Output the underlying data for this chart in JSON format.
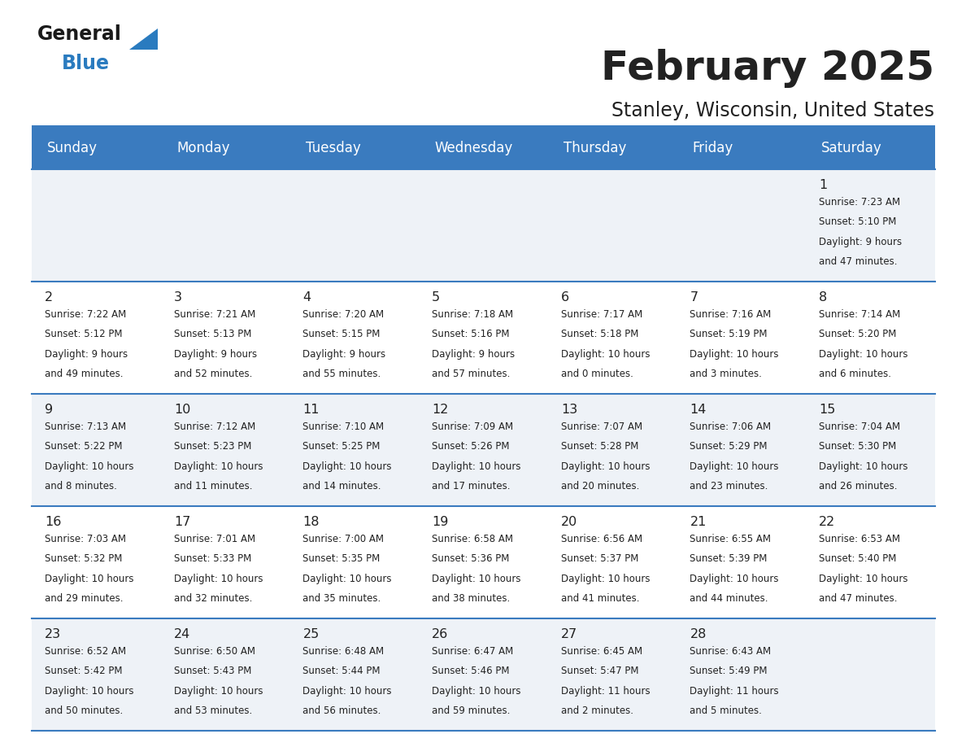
{
  "title": "February 2025",
  "subtitle": "Stanley, Wisconsin, United States",
  "days_of_week": [
    "Sunday",
    "Monday",
    "Tuesday",
    "Wednesday",
    "Thursday",
    "Friday",
    "Saturday"
  ],
  "header_bg": "#3a7bbf",
  "header_text": "#ffffff",
  "cell_bg_even": "#eef2f7",
  "cell_bg_odd": "#ffffff",
  "divider_color": "#3a7bbf",
  "text_color": "#222222",
  "logo_general_color": "#1a1a1a",
  "logo_blue_color": "#2a7bbf",
  "calendar_data": [
    {
      "day": 1,
      "col": 6,
      "row": 0,
      "sunrise": "7:23 AM",
      "sunset": "5:10 PM",
      "daylight": "9 hours and 47 minutes"
    },
    {
      "day": 2,
      "col": 0,
      "row": 1,
      "sunrise": "7:22 AM",
      "sunset": "5:12 PM",
      "daylight": "9 hours and 49 minutes"
    },
    {
      "day": 3,
      "col": 1,
      "row": 1,
      "sunrise": "7:21 AM",
      "sunset": "5:13 PM",
      "daylight": "9 hours and 52 minutes"
    },
    {
      "day": 4,
      "col": 2,
      "row": 1,
      "sunrise": "7:20 AM",
      "sunset": "5:15 PM",
      "daylight": "9 hours and 55 minutes"
    },
    {
      "day": 5,
      "col": 3,
      "row": 1,
      "sunrise": "7:18 AM",
      "sunset": "5:16 PM",
      "daylight": "9 hours and 57 minutes"
    },
    {
      "day": 6,
      "col": 4,
      "row": 1,
      "sunrise": "7:17 AM",
      "sunset": "5:18 PM",
      "daylight": "10 hours and 0 minutes"
    },
    {
      "day": 7,
      "col": 5,
      "row": 1,
      "sunrise": "7:16 AM",
      "sunset": "5:19 PM",
      "daylight": "10 hours and 3 minutes"
    },
    {
      "day": 8,
      "col": 6,
      "row": 1,
      "sunrise": "7:14 AM",
      "sunset": "5:20 PM",
      "daylight": "10 hours and 6 minutes"
    },
    {
      "day": 9,
      "col": 0,
      "row": 2,
      "sunrise": "7:13 AM",
      "sunset": "5:22 PM",
      "daylight": "10 hours and 8 minutes"
    },
    {
      "day": 10,
      "col": 1,
      "row": 2,
      "sunrise": "7:12 AM",
      "sunset": "5:23 PM",
      "daylight": "10 hours and 11 minutes"
    },
    {
      "day": 11,
      "col": 2,
      "row": 2,
      "sunrise": "7:10 AM",
      "sunset": "5:25 PM",
      "daylight": "10 hours and 14 minutes"
    },
    {
      "day": 12,
      "col": 3,
      "row": 2,
      "sunrise": "7:09 AM",
      "sunset": "5:26 PM",
      "daylight": "10 hours and 17 minutes"
    },
    {
      "day": 13,
      "col": 4,
      "row": 2,
      "sunrise": "7:07 AM",
      "sunset": "5:28 PM",
      "daylight": "10 hours and 20 minutes"
    },
    {
      "day": 14,
      "col": 5,
      "row": 2,
      "sunrise": "7:06 AM",
      "sunset": "5:29 PM",
      "daylight": "10 hours and 23 minutes"
    },
    {
      "day": 15,
      "col": 6,
      "row": 2,
      "sunrise": "7:04 AM",
      "sunset": "5:30 PM",
      "daylight": "10 hours and 26 minutes"
    },
    {
      "day": 16,
      "col": 0,
      "row": 3,
      "sunrise": "7:03 AM",
      "sunset": "5:32 PM",
      "daylight": "10 hours and 29 minutes"
    },
    {
      "day": 17,
      "col": 1,
      "row": 3,
      "sunrise": "7:01 AM",
      "sunset": "5:33 PM",
      "daylight": "10 hours and 32 minutes"
    },
    {
      "day": 18,
      "col": 2,
      "row": 3,
      "sunrise": "7:00 AM",
      "sunset": "5:35 PM",
      "daylight": "10 hours and 35 minutes"
    },
    {
      "day": 19,
      "col": 3,
      "row": 3,
      "sunrise": "6:58 AM",
      "sunset": "5:36 PM",
      "daylight": "10 hours and 38 minutes"
    },
    {
      "day": 20,
      "col": 4,
      "row": 3,
      "sunrise": "6:56 AM",
      "sunset": "5:37 PM",
      "daylight": "10 hours and 41 minutes"
    },
    {
      "day": 21,
      "col": 5,
      "row": 3,
      "sunrise": "6:55 AM",
      "sunset": "5:39 PM",
      "daylight": "10 hours and 44 minutes"
    },
    {
      "day": 22,
      "col": 6,
      "row": 3,
      "sunrise": "6:53 AM",
      "sunset": "5:40 PM",
      "daylight": "10 hours and 47 minutes"
    },
    {
      "day": 23,
      "col": 0,
      "row": 4,
      "sunrise": "6:52 AM",
      "sunset": "5:42 PM",
      "daylight": "10 hours and 50 minutes"
    },
    {
      "day": 24,
      "col": 1,
      "row": 4,
      "sunrise": "6:50 AM",
      "sunset": "5:43 PM",
      "daylight": "10 hours and 53 minutes"
    },
    {
      "day": 25,
      "col": 2,
      "row": 4,
      "sunrise": "6:48 AM",
      "sunset": "5:44 PM",
      "daylight": "10 hours and 56 minutes"
    },
    {
      "day": 26,
      "col": 3,
      "row": 4,
      "sunrise": "6:47 AM",
      "sunset": "5:46 PM",
      "daylight": "10 hours and 59 minutes"
    },
    {
      "day": 27,
      "col": 4,
      "row": 4,
      "sunrise": "6:45 AM",
      "sunset": "5:47 PM",
      "daylight": "11 hours and 2 minutes"
    },
    {
      "day": 28,
      "col": 5,
      "row": 4,
      "sunrise": "6:43 AM",
      "sunset": "5:49 PM",
      "daylight": "11 hours and 5 minutes"
    }
  ]
}
